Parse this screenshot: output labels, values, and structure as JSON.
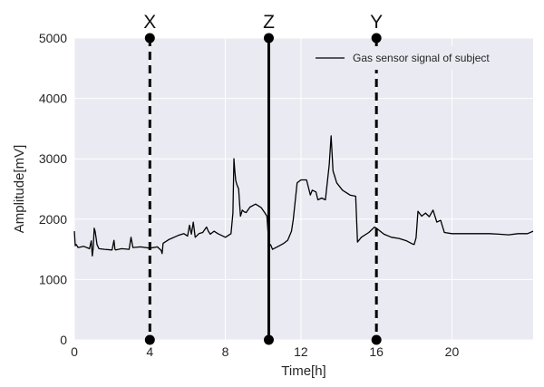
{
  "chart_data": {
    "type": "line",
    "xlabel": "Time[h]",
    "ylabel": "Amplitude[mV]",
    "xlim": [
      0,
      24.3
    ],
    "ylim": [
      0,
      5000
    ],
    "xticks": [
      0,
      4,
      8,
      12,
      16,
      20
    ],
    "yticks": [
      0,
      1000,
      2000,
      3000,
      4000,
      5000
    ],
    "grid": true,
    "legend_position": "top-right",
    "background": "#eaeaf2",
    "line_color": "#000000",
    "series": [
      {
        "name": "Gas sensor signal of subject",
        "x": [
          0.0,
          0.05,
          0.1,
          0.2,
          0.5,
          0.8,
          0.9,
          0.95,
          1.0,
          1.05,
          1.1,
          1.15,
          1.2,
          1.3,
          1.6,
          2.0,
          2.1,
          2.15,
          2.2,
          2.5,
          2.9,
          3.0,
          3.1,
          3.5,
          4.0,
          4.4,
          4.6,
          4.65,
          4.7,
          5.0,
          5.5,
          5.8,
          6.0,
          6.1,
          6.2,
          6.3,
          6.4,
          6.6,
          6.8,
          7.0,
          7.1,
          7.2,
          7.4,
          7.6,
          8.0,
          8.3,
          8.4,
          8.45,
          8.5,
          8.55,
          8.6,
          8.7,
          8.8,
          8.9,
          9.0,
          9.1,
          9.3,
          9.6,
          9.9,
          10.1,
          10.2,
          10.3,
          10.4,
          10.5,
          10.8,
          11.1,
          11.3,
          11.5,
          11.6,
          11.8,
          12.0,
          12.3,
          12.5,
          12.6,
          12.8,
          12.9,
          13.1,
          13.3,
          13.5,
          13.6,
          13.7,
          13.9,
          14.2,
          14.6,
          14.9,
          15.0,
          15.2,
          15.6,
          15.9,
          16.0,
          16.4,
          16.8,
          17.2,
          17.6,
          17.9,
          18.0,
          18.1,
          18.2,
          18.4,
          18.6,
          18.8,
          19.0,
          19.2,
          19.4,
          19.6,
          20.0,
          21.0,
          22.0,
          22.5,
          23.0,
          23.5,
          24.0,
          24.3
        ],
        "y": [
          1800,
          1560,
          1580,
          1530,
          1550,
          1510,
          1640,
          1390,
          1520,
          1850,
          1800,
          1700,
          1580,
          1510,
          1500,
          1490,
          1650,
          1500,
          1490,
          1510,
          1500,
          1700,
          1530,
          1540,
          1520,
          1540,
          1480,
          1430,
          1600,
          1660,
          1730,
          1760,
          1720,
          1900,
          1750,
          1950,
          1700,
          1760,
          1780,
          1870,
          1800,
          1750,
          1800,
          1760,
          1700,
          1760,
          2100,
          3000,
          2800,
          2640,
          2580,
          2500,
          2050,
          2150,
          2120,
          2110,
          2200,
          2250,
          2190,
          2100,
          2050,
          1600,
          1570,
          1500,
          1550,
          1600,
          1650,
          1800,
          2000,
          2600,
          2650,
          2650,
          2400,
          2480,
          2450,
          2320,
          2350,
          2320,
          2900,
          3380,
          2800,
          2600,
          2480,
          2400,
          2380,
          1620,
          1700,
          1780,
          1870,
          1850,
          1750,
          1700,
          1680,
          1640,
          1590,
          1580,
          1690,
          2130,
          2050,
          2100,
          2040,
          2150,
          1950,
          1980,
          1780,
          1760,
          1760,
          1760,
          1750,
          1740,
          1760,
          1760,
          1800
        ]
      }
    ],
    "vlines": [
      {
        "label": "X",
        "x": 4.0,
        "style": "dashed"
      },
      {
        "label": "Z",
        "x": 10.3,
        "style": "solid"
      },
      {
        "label": "Y",
        "x": 16.0,
        "style": "dashed"
      }
    ]
  }
}
